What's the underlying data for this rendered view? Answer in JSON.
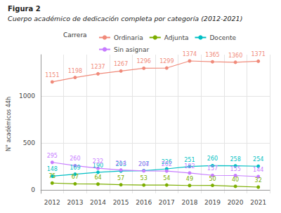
{
  "chart_data": {
    "type": "line",
    "title": "Figura 2",
    "subtitle": "Cuerpo académico de dedicación completa por categoría (2012-2021)",
    "legend_title": "Carrera",
    "y_label": "N° académicos 44h",
    "categories": [
      "2012",
      "2013",
      "2014",
      "2015",
      "2016",
      "2017",
      "2018",
      "2019",
      "2020",
      "2021"
    ],
    "series": [
      {
        "name": "Ordinaria",
        "color": "#f08a7a",
        "values": [
          1151,
          1198,
          1237,
          1267,
          1296,
          1299,
          1374,
          1365,
          1360,
          1371
        ]
      },
      {
        "name": "Adjunta",
        "color": "#7cae00",
        "values": [
          75,
          67,
          64,
          57,
          53,
          54,
          49,
          50,
          40,
          32
        ]
      },
      {
        "name": "Docente",
        "color": "#00bfc4",
        "values": [
          148,
          169,
          190,
          203,
          207,
          226,
          251,
          260,
          258,
          254
        ]
      },
      {
        "name": "Sin asignar",
        "color": "#c77cff",
        "values": [
          295,
          260,
          232,
          214,
          204,
          202,
          182,
          157,
          155,
          144
        ]
      }
    ],
    "ylim": [
      -35,
      1441
    ],
    "yticks": [
      0,
      500,
      1000
    ],
    "grid": true,
    "legend": "top",
    "data_labels": true,
    "marker": "circle"
  }
}
